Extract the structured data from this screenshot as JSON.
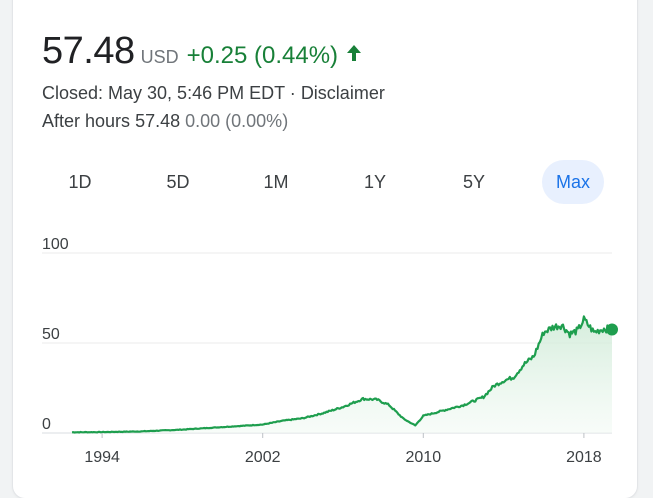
{
  "quote": {
    "price": "57.48",
    "currency": "USD",
    "change": "+0.25 (0.44%)",
    "change_color": "#188038",
    "direction_icon": "arrow-up-icon",
    "closed_text": "Closed: May 30, 5:46 PM EDT",
    "separator": "·",
    "disclaimer": "Disclaimer",
    "after_hours_label": "After hours",
    "after_hours_price": "57.48",
    "after_hours_change": "0.00 (0.00%)"
  },
  "range_tabs": {
    "items": [
      "1D",
      "5D",
      "1M",
      "1Y",
      "5Y",
      "Max"
    ],
    "selected": "Max",
    "accent": "#1a73e8"
  },
  "chart_data": {
    "type": "area",
    "line_color": "#1e9e4e",
    "fill_color": "#e6f4ea",
    "grid": true,
    "ylim": [
      0,
      100
    ],
    "y_ticks": [
      0,
      50,
      100
    ],
    "x_ticks": [
      "1994",
      "2002",
      "2010",
      "2018"
    ],
    "xlim": [
      1992.5,
      2019.4
    ],
    "series": [
      {
        "x": [
          1992.5,
          1994,
          1996,
          1998,
          2000,
          2002,
          2003,
          2004,
          2005,
          2006,
          2007,
          2007.7,
          2008.3,
          2009,
          2009.6,
          2010,
          2011,
          2012,
          2013,
          2013.5,
          2014,
          2014.5,
          2015,
          2015.5,
          2016,
          2016.5,
          2016.9,
          2017.3,
          2017.7,
          2018,
          2018.5,
          2019,
          2019.4
        ],
        "y": [
          0.4,
          0.5,
          0.9,
          1.9,
          3.3,
          4.7,
          6.8,
          8.2,
          11,
          14.5,
          19,
          18.5,
          15.5,
          8,
          4.2,
          9.5,
          12.5,
          15.5,
          20,
          26,
          29,
          31,
          38,
          42.5,
          56,
          59,
          60,
          55,
          57,
          63,
          56,
          58,
          57.48
        ]
      }
    ]
  }
}
